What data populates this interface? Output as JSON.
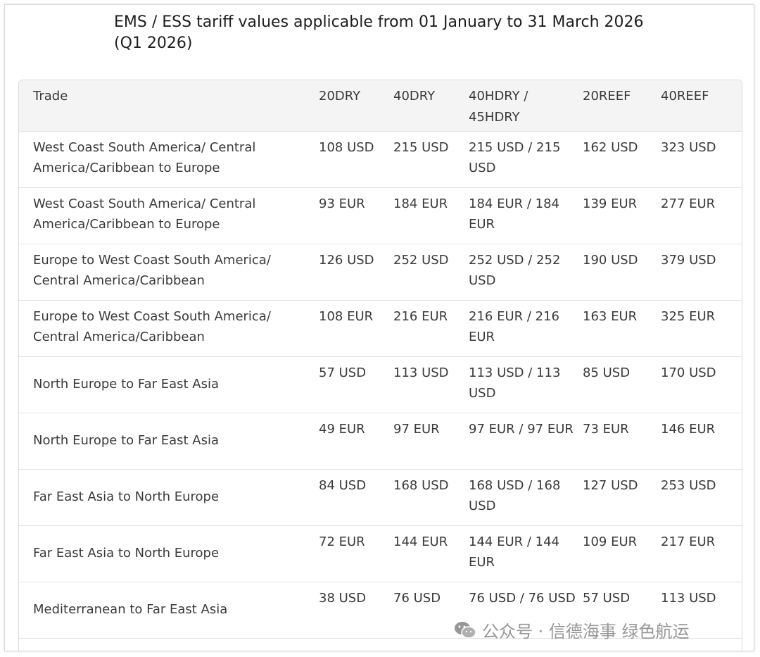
{
  "title": "EMS / ESS tariff values applicable from 01 January to 31 March 2026 (Q1 2026)",
  "table": {
    "headers": [
      "Trade",
      "20DRY",
      "40DRY",
      "40HDRY / 45HDRY",
      "20REEF",
      "40REEF"
    ],
    "rows": [
      [
        "West Coast South America/ Central America/Caribbean to Europe",
        "108 USD",
        "215 USD",
        "215 USD / 215 USD",
        "162 USD",
        "323 USD"
      ],
      [
        "West Coast South America/ Central America/Caribbean to Europe",
        "93 EUR",
        "184 EUR",
        "184 EUR / 184 EUR",
        "139 EUR",
        "277 EUR"
      ],
      [
        "Europe to West Coast South America/ Central America/Caribbean",
        "126 USD",
        "252 USD",
        "252 USD / 252 USD",
        "190 USD",
        "379 USD"
      ],
      [
        "Europe to West Coast South America/ Central America/Caribbean",
        "108 EUR",
        "216 EUR",
        "216 EUR / 216 EUR",
        "163 EUR",
        "325 EUR"
      ],
      [
        "North Europe to Far East Asia",
        "57 USD",
        "113 USD",
        "113 USD / 113 USD",
        "85 USD",
        "170 USD"
      ],
      [
        "North Europe to Far East Asia",
        "49 EUR",
        "97 EUR",
        "97 EUR / 97 EUR",
        "73 EUR",
        "146 EUR"
      ],
      [
        "Far East Asia to North Europe",
        "84 USD",
        "168 USD",
        "168 USD / 168 USD",
        "127 USD",
        "253 USD"
      ],
      [
        "Far East Asia to North Europe",
        "72 EUR",
        "144 EUR",
        "144 EUR / 144 EUR",
        "109 EUR",
        "217 EUR"
      ],
      [
        "Mediterranean to Far East Asia",
        "38 USD",
        "76 USD",
        "76 USD / 76 USD",
        "57 USD",
        "113 USD"
      ]
    ]
  },
  "watermark": {
    "text": "公众号 · 信德海事 绿色航运",
    "icon": "wechat-icon"
  }
}
